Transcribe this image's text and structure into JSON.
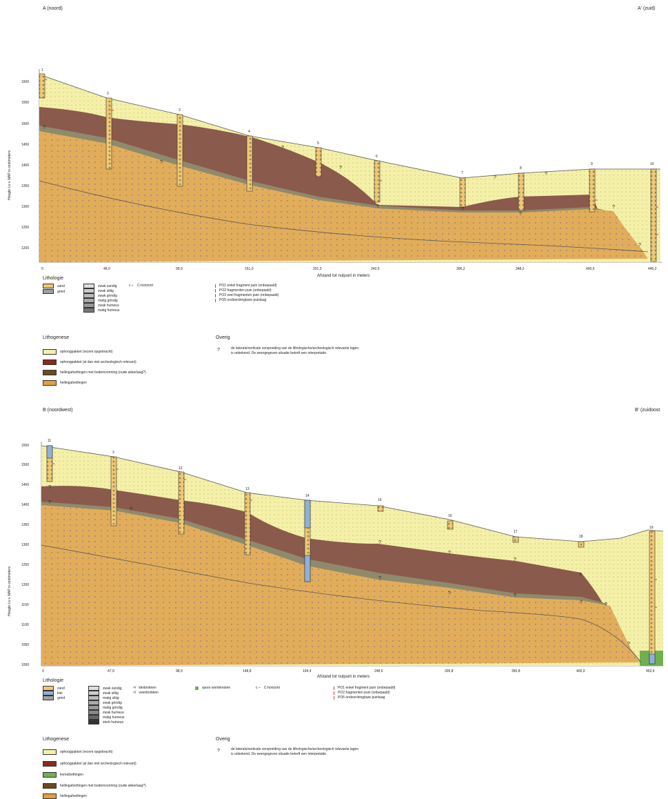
{
  "sectionA": {
    "title_left": "A (noord)",
    "title_right": "A' (zuid)",
    "ylabel": "Hoogte t.o.v. NAP in centimeters",
    "xlabel": "Afstand tot nulpunt in meters",
    "yticks": [
      "1600",
      "1550",
      "1500",
      "1450",
      "1400",
      "1350",
      "1300",
      "1250",
      "1200"
    ],
    "xticks": [
      "0",
      "48,0",
      "99,9",
      "151,0",
      "201,3",
      "243,5",
      "306,2",
      "348,2",
      "400,6",
      "445,2"
    ],
    "boreholes": [
      "1",
      "2",
      "3",
      "4",
      "5",
      "6",
      "7",
      "8",
      "9",
      "10"
    ],
    "unknown": "?",
    "lithology_title": "Lithologie",
    "lithology_col1": [
      "zand",
      "grind"
    ],
    "lithology_col2": [
      "zwak zandig",
      "zwak siltig",
      "zwak grindig",
      "matig grindig",
      "zwak humeus",
      "matig humeus"
    ],
    "c_horizon": "C-horizont",
    "c_horizon_symbol": "c ⌐",
    "debris": [
      "PO1  enkel fragment puin (onbepaald)",
      "PO2  fragmenten puin (onbepaald)",
      "PO3  veel fragmenten puin (onbepaald)",
      "PO5  ondoordringbare puinlaag"
    ],
    "genesis_title": "Lithogenese",
    "genesis": [
      "ophoogpakket (recent opgebracht)",
      "ophoogpakket (al dan niet archeologisch relevant)",
      "hellingafzettingen met bodemvorming (oude akkerlaag?)",
      "hellingafzettingen"
    ],
    "other_title": "Overig",
    "other_symbol": "?",
    "other_line1": "de laterale/verticale verspreiding van de lithologische/archeologisch relevante lagen",
    "other_line2": "is onbekend. De weergegeven situatie betreft een interpretatie."
  },
  "sectionB": {
    "title_left": "B (noordwest)",
    "title_right": "B' (zuidoost",
    "ylabel": "Hoogte t.o.v. NAP in centimeters",
    "xlabel": "Afstand tot nulpunt in meters",
    "yticks": [
      "1550",
      "1500",
      "1450",
      "1400",
      "1350",
      "1300",
      "1250",
      "1200",
      "1150",
      "1100",
      "1050",
      "1000"
    ],
    "xticks": [
      "0",
      "47,9",
      "98,9",
      "148,8",
      "194,4",
      "248,6",
      "300,8",
      "350,8",
      "400,0",
      "453,4"
    ],
    "boreholes": [
      "11",
      "3",
      "12",
      "13",
      "14",
      "15",
      "16",
      "17",
      "18",
      "19"
    ],
    "unknown": "?",
    "lithology_title": "Lithologie",
    "lithology_col1": [
      "zand",
      "klei",
      "grind"
    ],
    "lithology_col2": [
      "zwak zandig",
      "zwak siltig",
      "matig siltig",
      "zwak grindig",
      "matig grindig",
      "zwak humeus",
      "matig humeus",
      "sterk humeus"
    ],
    "lithology_col3": [
      "kleibrokken",
      "veenbrokken"
    ],
    "lithology_col3_symbol": "×/",
    "roots": "spoor wortelresten",
    "c_horizon": "C-horizont",
    "c_horizon_symbol": "c ⌐",
    "debris": [
      "PO1  enkel fragment puin (onbepaald)",
      "PO2  fragmenten puin (onbepaald)",
      "PO5  ondoordringbare puinlaag"
    ],
    "genesis_title": "Lithogenese",
    "genesis": [
      "ophoogpakket (recent opgebracht)",
      "ophoogpakket (al dan niet archeologisch relevant)",
      "komafzettingen",
      "hellingafzettingen met bodemvorming (oude akkerlaag?)",
      "hellingafzettingen"
    ],
    "other_title": "Overig",
    "other_symbol": "?",
    "other_line1": "de laterale/verticale verspreiding van de lithologische/archeologisch relevante lagen",
    "other_line2": "is onbekend. De weergegeven situatie betreft een interpretatie."
  },
  "colors": {
    "fill_recent": "#f4f0a8",
    "fill_archeo": "#8a5a4c",
    "fill_soil": "#8f8a6c",
    "fill_slope": "#e2ad5a",
    "zand": "#f0c870",
    "klei": "#8fb0d8",
    "grind": "#a0a0a0",
    "kom": "#6fb04f",
    "debris": "#d33"
  }
}
